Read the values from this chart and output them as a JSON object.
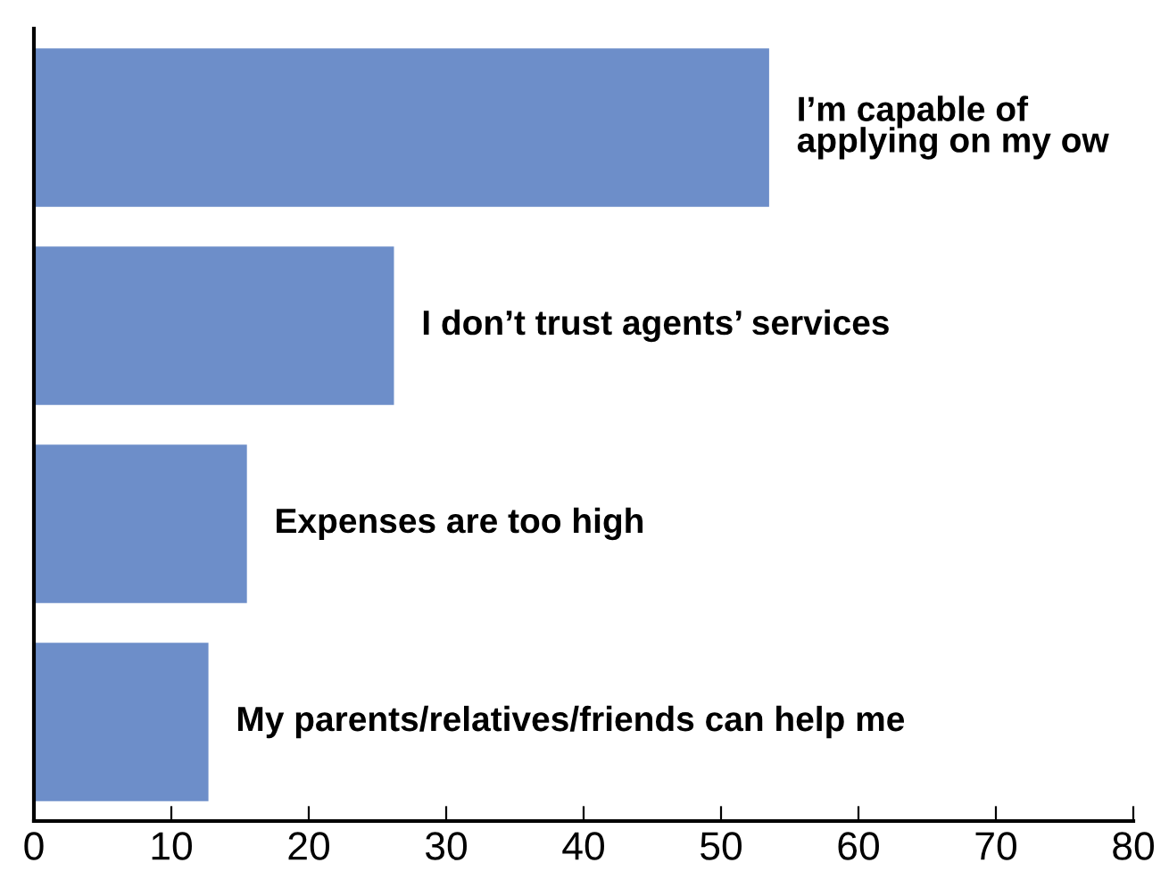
{
  "chart_data": {
    "type": "bar",
    "orientation": "horizontal",
    "categories": [
      "I’m capable of\napplying on my ow",
      "I don’t trust agents’ services",
      "Expenses are too high",
      "My parents/relatives/friends can help me"
    ],
    "values": [
      53.5,
      26.2,
      15.5,
      12.7
    ],
    "color": "#6d8ec9",
    "xlim": [
      0,
      80
    ],
    "xticks": [
      0,
      10,
      20,
      30,
      40,
      50,
      60,
      70,
      80
    ],
    "grid": false
  }
}
